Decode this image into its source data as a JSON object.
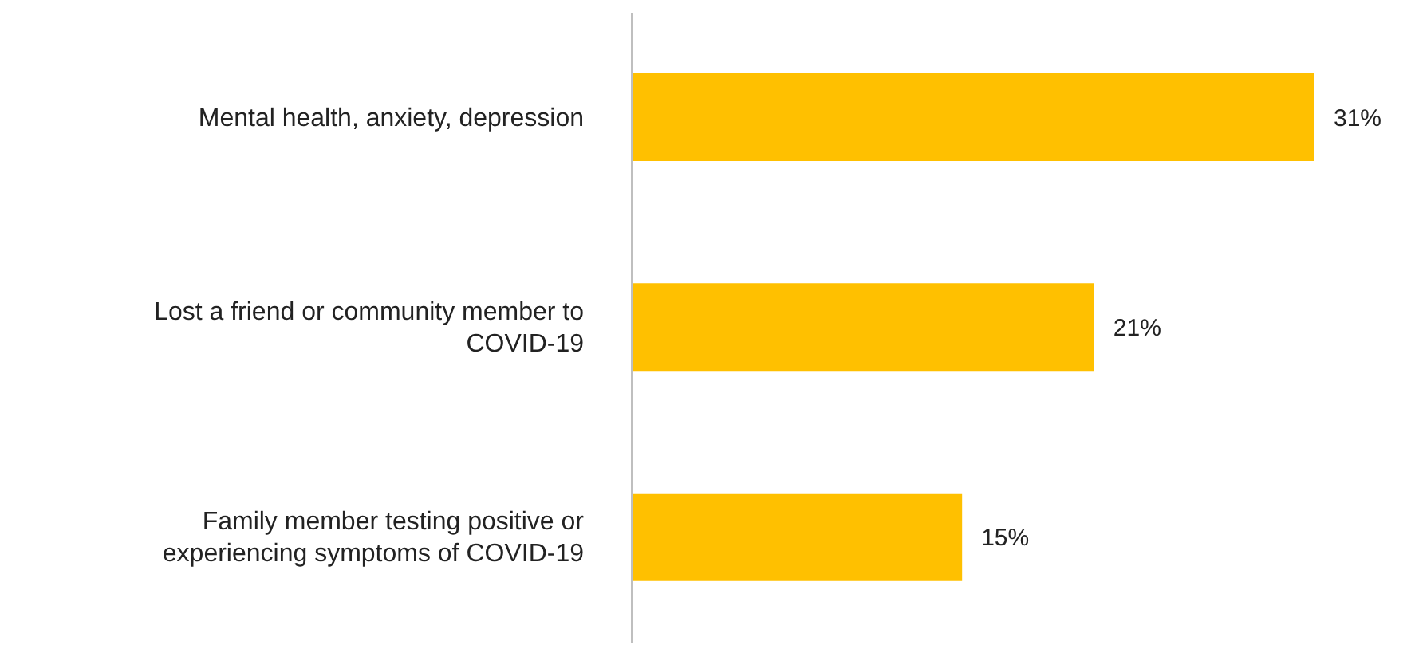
{
  "chart_data": {
    "type": "bar",
    "orientation": "horizontal",
    "categories": [
      "Mental health, anxiety, depression",
      "Lost a friend or community member to COVID-19",
      "Family member testing positive or experiencing symptoms of COVID-19"
    ],
    "values": [
      31,
      21,
      15
    ],
    "color": "#ffc000",
    "value_labels": [
      "31%",
      "21%",
      "15%"
    ]
  }
}
